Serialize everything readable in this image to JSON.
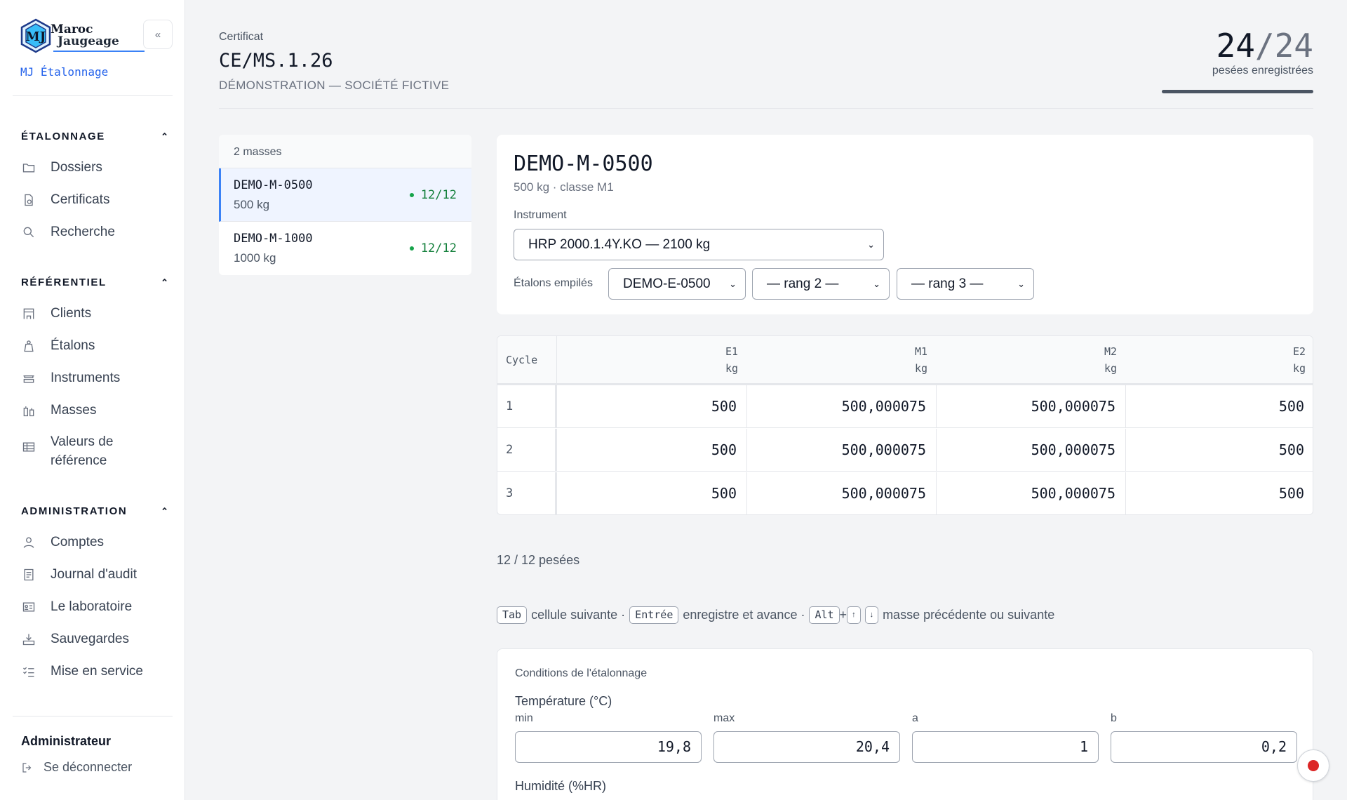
{
  "brand": {
    "logo_line1": "Maroc",
    "logo_line2": "Jaugeage",
    "app_name": "MJ Étalonnage",
    "collapse_label": "«"
  },
  "sidebar": {
    "sections": [
      {
        "title": "ÉTALONNAGE",
        "items": [
          {
            "label": "Dossiers",
            "icon": "folder-icon"
          },
          {
            "label": "Certificats",
            "icon": "certificate-icon"
          },
          {
            "label": "Recherche",
            "icon": "search-icon"
          }
        ]
      },
      {
        "title": "RÉFÉRENTIEL",
        "items": [
          {
            "label": "Clients",
            "icon": "building-icon"
          },
          {
            "label": "Étalons",
            "icon": "weight-icon"
          },
          {
            "label": "Instruments",
            "icon": "scale-icon"
          },
          {
            "label": "Masses",
            "icon": "masses-icon"
          },
          {
            "label": "Valeurs de référence",
            "icon": "table-icon"
          }
        ]
      },
      {
        "title": "ADMINISTRATION",
        "items": [
          {
            "label": "Comptes",
            "icon": "user-icon"
          },
          {
            "label": "Journal d'audit",
            "icon": "journal-icon"
          },
          {
            "label": "Le laboratoire",
            "icon": "id-card-icon"
          },
          {
            "label": "Sauvegardes",
            "icon": "backup-icon"
          },
          {
            "label": "Mise en service",
            "icon": "checklist-icon"
          }
        ]
      }
    ],
    "user": "Administrateur",
    "logout": "Se déconnecter"
  },
  "header": {
    "kicker": "Certificat",
    "title": "CE/MS.1.26",
    "subtitle": "DÉMONSTRATION — SOCIÉTÉ FICTIVE",
    "counter_done": "24",
    "counter_sep": "/",
    "counter_total": "24",
    "counter_caption": "pesées enregistrées",
    "progress": 1.0
  },
  "masses": {
    "count_label": "2 masses",
    "items": [
      {
        "code": "DEMO-M-0500",
        "weight": "500 kg",
        "status": "12/12",
        "active": true
      },
      {
        "code": "DEMO-M-1000",
        "weight": "1000 kg",
        "status": "12/12",
        "active": false
      }
    ]
  },
  "detail": {
    "title": "DEMO-M-0500",
    "subtitle": "500 kg · classe M1",
    "instrument_label": "Instrument",
    "instrument_value": "HRP 2000.1.4Y.KO — 2100 kg",
    "stack_label": "Étalons empilés",
    "stack": [
      "DEMO-E-0500",
      "— rang 2 —",
      "— rang 3 —"
    ]
  },
  "table": {
    "cycle_header": "Cycle",
    "columns": [
      {
        "name": "E1",
        "unit": "kg"
      },
      {
        "name": "M1",
        "unit": "kg"
      },
      {
        "name": "M2",
        "unit": "kg"
      },
      {
        "name": "E2",
        "unit": "kg"
      }
    ],
    "rows": [
      {
        "cycle": "1",
        "values": [
          "500",
          "500,000075",
          "500,000075",
          "500"
        ]
      },
      {
        "cycle": "2",
        "values": [
          "500",
          "500,000075",
          "500,000075",
          "500"
        ]
      },
      {
        "cycle": "3",
        "values": [
          "500",
          "500,000075",
          "500,000075",
          "500"
        ]
      }
    ]
  },
  "pesees_label": "12 / 12 pesées",
  "hint": {
    "k_tab": "Tab",
    "t_tab": "cellule suivante ·",
    "k_enter": "Entrée",
    "t_enter": "enregistre et avance ·",
    "k_alt": "Alt",
    "plus": "+",
    "k_up": "↑",
    "k_down": "↓",
    "t_nav": "masse précédente ou suivante"
  },
  "conditions": {
    "title": "Conditions de l'étalonnage",
    "temperature_label": "Température (°C)",
    "fields": [
      {
        "label": "min",
        "value": "19,8"
      },
      {
        "label": "max",
        "value": "20,4"
      },
      {
        "label": "a",
        "value": "1"
      },
      {
        "label": "b",
        "value": "0,2"
      }
    ],
    "humidity_label": "Humidité (%HR)"
  },
  "colors": {
    "accent": "#3b82f6",
    "success": "#15803d",
    "record": "#dc2626"
  }
}
